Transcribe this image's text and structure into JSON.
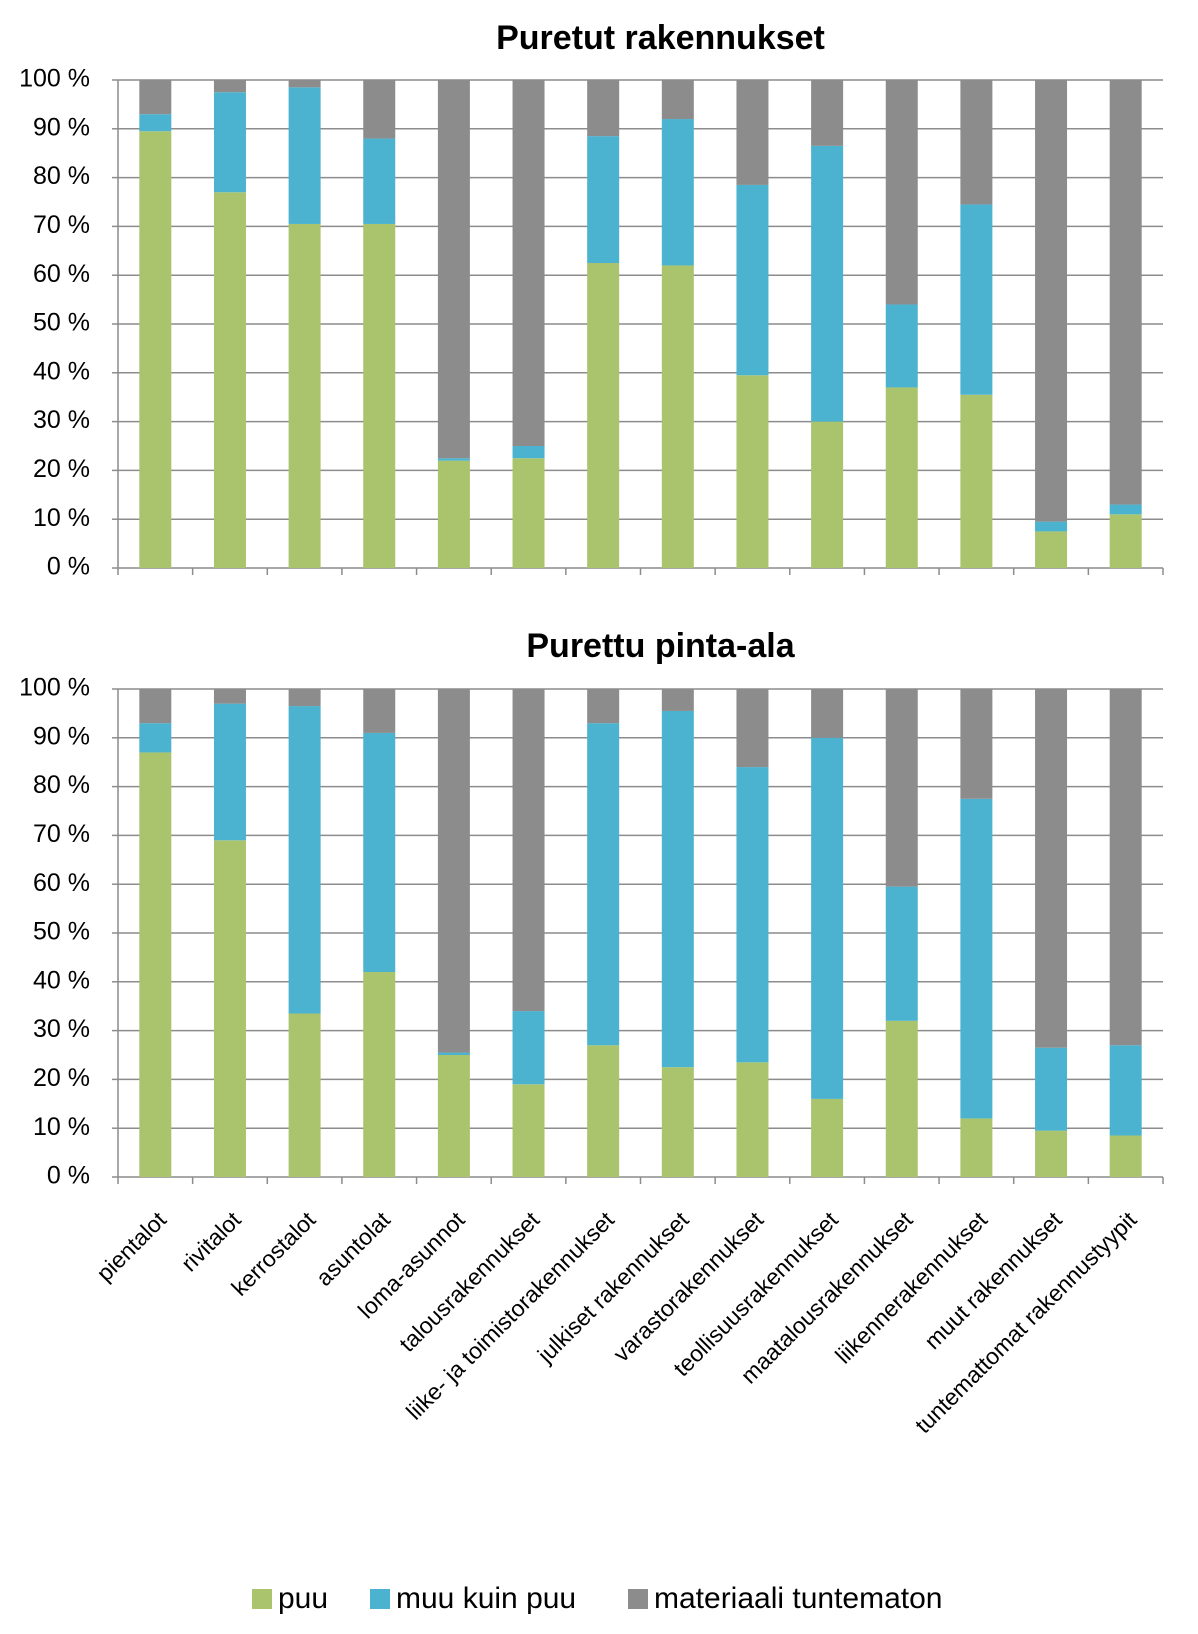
{
  "chart_data": [
    {
      "type": "bar",
      "stacked": true,
      "title": "Puretut rakennukset",
      "ylim": [
        0,
        100
      ],
      "yticks": [
        "0 %",
        "10 %",
        "20 %",
        "30 %",
        "40 %",
        "50 %",
        "60 %",
        "70 %",
        "80 %",
        "90 %",
        "100 %"
      ],
      "grid": true,
      "categories": [
        "pientalot",
        "rivitalot",
        "kerrostalot",
        "asuntolat",
        "loma-asunnot",
        "talousrakennukset",
        "liike- ja toimistorakennukset",
        "julkiset rakennukset",
        "varastorakennukset",
        "teollisuusrakennukset",
        "maatalousrakennukset",
        "liikennerakennukset",
        "muut rakennukset",
        "tuntemattomat rakennustyypit"
      ],
      "series": [
        {
          "name": "puu",
          "color": "#a9c46c",
          "values": [
            89.5,
            77,
            70.5,
            70.5,
            22,
            22.5,
            62.5,
            62,
            39.5,
            30,
            37,
            35.5,
            7.5,
            11
          ]
        },
        {
          "name": "muu kuin puu",
          "color": "#4bb3cf",
          "values": [
            3.5,
            20.5,
            28,
            17.5,
            0.5,
            2.5,
            26,
            30,
            39,
            56.5,
            17,
            39,
            2,
            2
          ]
        },
        {
          "name": "materiaali tuntematon",
          "color": "#8c8c8c",
          "values": [
            7,
            2.5,
            1.5,
            12,
            77.5,
            75,
            11.5,
            8,
            21.5,
            13.5,
            46,
            25.5,
            90.5,
            87
          ]
        }
      ]
    },
    {
      "type": "bar",
      "stacked": true,
      "title": "Purettu pinta-ala",
      "ylim": [
        0,
        100
      ],
      "yticks": [
        "0 %",
        "10 %",
        "20 %",
        "30 %",
        "40 %",
        "50 %",
        "60 %",
        "70 %",
        "80 %",
        "90 %",
        "100 %"
      ],
      "grid": true,
      "categories": [
        "pientalot",
        "rivitalot",
        "kerrostalot",
        "asuntolat",
        "loma-asunnot",
        "talousrakennukset",
        "liike- ja toimistorakennukset",
        "julkiset rakennukset",
        "varastorakennukset",
        "teollisuusrakennukset",
        "maatalousrakennukset",
        "liikennerakennukset",
        "muut rakennukset",
        "tuntemattomat rakennustyypit"
      ],
      "series": [
        {
          "name": "puu",
          "color": "#a9c46c",
          "values": [
            87,
            69,
            33.5,
            42,
            25,
            19,
            27,
            22.5,
            23.5,
            16,
            32,
            12,
            9.5,
            8.5
          ]
        },
        {
          "name": "muu kuin puu",
          "color": "#4bb3cf",
          "values": [
            6,
            28,
            63,
            49,
            0.5,
            15,
            66,
            73,
            60.5,
            74,
            27.5,
            65.5,
            17,
            18.5
          ]
        },
        {
          "name": "materiaali tuntematon",
          "color": "#8c8c8c",
          "values": [
            7,
            3,
            3.5,
            9,
            74.5,
            66,
            7,
            4.5,
            16,
            10,
            40.5,
            22.5,
            73.5,
            73
          ]
        }
      ]
    }
  ],
  "legend": {
    "placement": "bottom",
    "items": [
      {
        "label": "puu",
        "color": "#a9c46c"
      },
      {
        "label": "muu kuin puu",
        "color": "#4bb3cf"
      },
      {
        "label": "materiaali tuntematon",
        "color": "#8c8c8c"
      }
    ]
  }
}
